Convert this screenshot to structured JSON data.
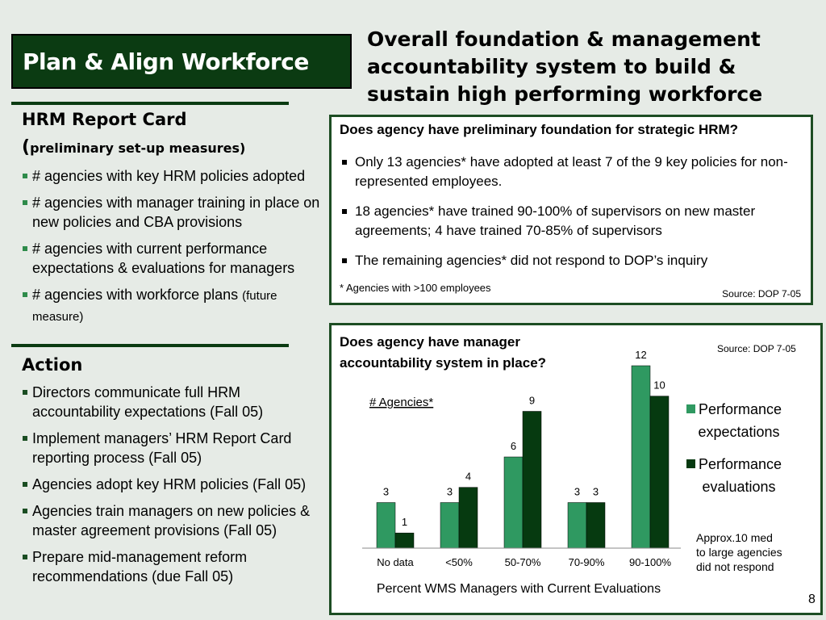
{
  "header": {
    "section_title": "Plan & Align Workforce",
    "main_heading": "Overall foundation & management accountability system to build & sustain high performing workforce"
  },
  "report_card": {
    "title": "HRM Report Card",
    "subtitle_open": "(",
    "subtitle_text": "preliminary set-up measures)",
    "items": [
      "# agencies with key HRM policies adopted",
      "# agencies with manager training in place on new policies and CBA provisions",
      "# agencies with current performance expectations & evaluations for managers"
    ],
    "item4_main": "# agencies with workforce plans ",
    "item4_small": "(future measure)"
  },
  "action": {
    "title": "Action",
    "items": [
      " Directors communicate full HRM accountability expectations (Fall 05)",
      "Implement managers’ HRM Report Card reporting process  (Fall 05)",
      "Agencies adopt key HRM policies (Fall 05)",
      "Agencies train managers on new policies & master agreement provisions (Fall 05)",
      "Prepare mid-management reform recommendations (due Fall 05)"
    ]
  },
  "foundation_box": {
    "question": "Does agency have preliminary foundation for strategic HRM?",
    "bullets": [
      "Only 13 agencies* have adopted at least 7 of the 9 key policies for non-represented employees.",
      "18 agencies* have trained 90-100% of supervisors on new master agreements; 4 have trained 70-85% of supervisors",
      "The remaining agencies* did not respond to DOP’s inquiry"
    ],
    "footnote": "* Agencies with >100 employees",
    "source": "Source: DOP 7-05"
  },
  "accountability_box": {
    "question_line1": "Does agency have manager",
    "question_line2": "accountability system in place?",
    "source": "Source: DOP 7-05",
    "note_line1": "Approx.10 med",
    "note_line2": "to large agencies",
    "note_line3": "did not respond"
  },
  "page_number": "8",
  "colors": {
    "dark_green": "#0b3b12",
    "expectations_color": "#2f9961",
    "evaluations_color": "#063a10"
  },
  "chart_data": {
    "type": "bar",
    "categories": [
      "No data",
      "<50%",
      "50-70%",
      "70-90%",
      "90-100%"
    ],
    "series": [
      {
        "name": "Performance expectations",
        "values": [
          3,
          3,
          6,
          3,
          12
        ]
      },
      {
        "name": "Performance evaluations",
        "values": [
          1,
          4,
          9,
          3,
          10
        ]
      }
    ],
    "xlabel": "Percent WMS Managers with Current Evaluations",
    "ylabel": "# Agencies*",
    "ylim": [
      0,
      12
    ],
    "grid": false,
    "legend_position": "right",
    "legend_labels": [
      [
        "Performance",
        "expectations"
      ],
      [
        "Performance",
        "evaluations"
      ]
    ]
  }
}
